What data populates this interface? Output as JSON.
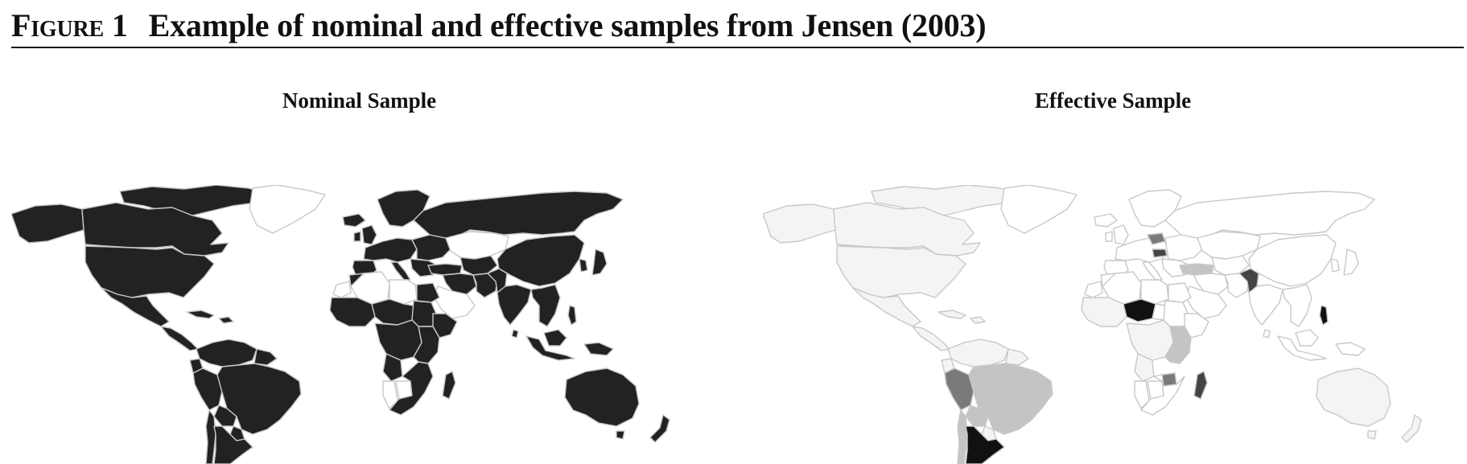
{
  "figure": {
    "label": "Figure 1",
    "title": "Example of nominal and effective samples from Jensen (2003)"
  },
  "panels": [
    {
      "id": "nominal",
      "title": "Nominal Sample",
      "fill_default": "#222222",
      "border_color": "#c8c8c8",
      "excluded_fill": "#ffffff",
      "excluded_regions": [
        "Greenland",
        "Kazakhstan",
        "Saudi Arabia",
        "Libya",
        "Algeria",
        "Western Sahara",
        "Namibia",
        "Botswana"
      ]
    },
    {
      "id": "effective",
      "title": "Effective Sample",
      "fill_default": "#f4f4f4",
      "border_color": "#c8c8c8",
      "weight_colors": {
        "none": "#ffffff",
        "very_low": "#f4f4f4",
        "low": "#c4c4c4",
        "medium": "#7a7a7a",
        "high": "#444444",
        "very_high": "#111111"
      },
      "highlighted_regions": [
        {
          "name": "Argentina",
          "weight": "very_high"
        },
        {
          "name": "Brazil",
          "weight": "low"
        },
        {
          "name": "Peru",
          "weight": "medium"
        },
        {
          "name": "Bolivia",
          "weight": "low"
        },
        {
          "name": "Niger",
          "weight": "very_high"
        },
        {
          "name": "Pakistan",
          "weight": "high"
        },
        {
          "name": "Madagascar",
          "weight": "high"
        },
        {
          "name": "Poland",
          "weight": "medium"
        },
        {
          "name": "Hungary",
          "weight": "high"
        },
        {
          "name": "Zimbabwe",
          "weight": "medium"
        },
        {
          "name": "Philippines",
          "weight": "very_high"
        },
        {
          "name": "Turkey",
          "weight": "low"
        }
      ]
    }
  ]
}
